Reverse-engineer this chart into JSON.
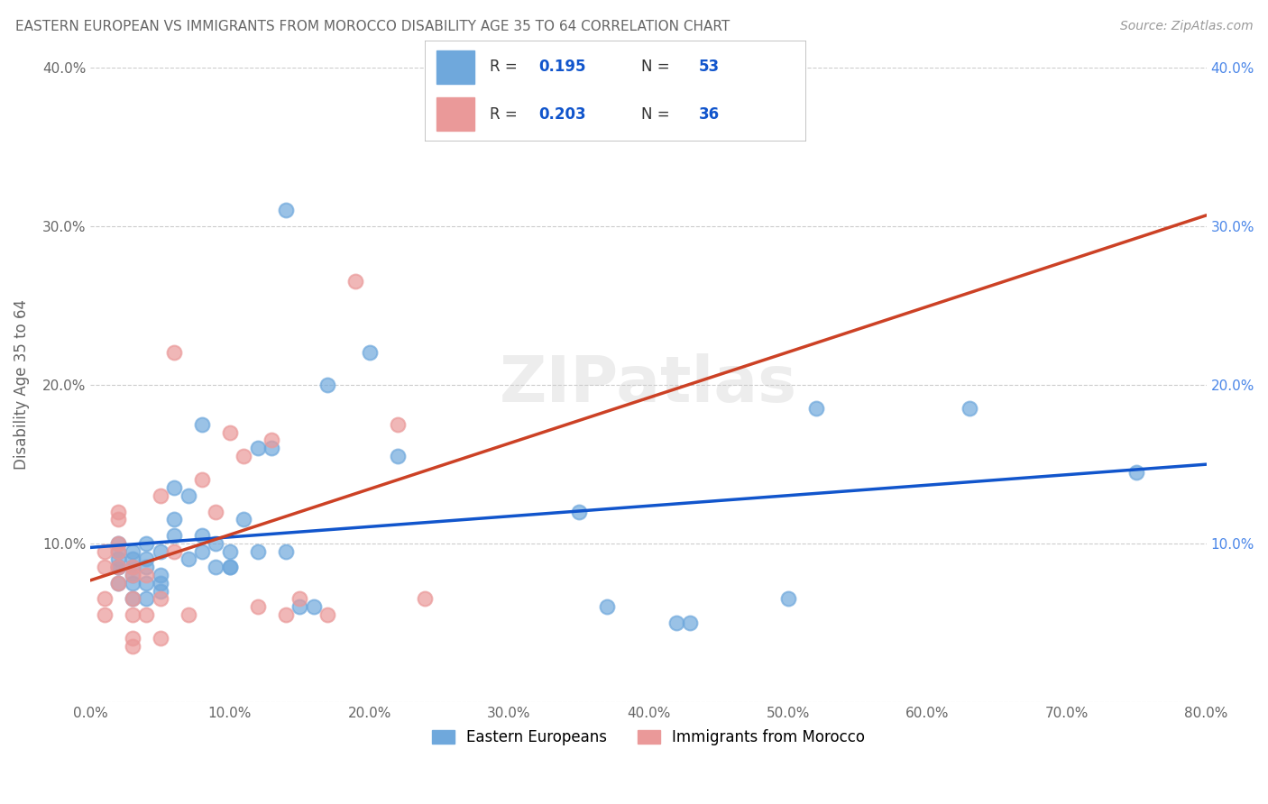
{
  "title": "EASTERN EUROPEAN VS IMMIGRANTS FROM MOROCCO DISABILITY AGE 35 TO 64 CORRELATION CHART",
  "source": "Source: ZipAtlas.com",
  "xlabel": "",
  "ylabel": "Disability Age 35 to 64",
  "xlim": [
    0,
    0.8
  ],
  "ylim": [
    0,
    0.4
  ],
  "xticks": [
    0.0,
    0.1,
    0.2,
    0.3,
    0.4,
    0.5,
    0.6,
    0.7,
    0.8
  ],
  "yticks": [
    0.0,
    0.1,
    0.2,
    0.3,
    0.4
  ],
  "xtick_labels": [
    "0.0%",
    "10.0%",
    "20.0%",
    "30.0%",
    "40.0%",
    "50.0%",
    "60.0%",
    "70.0%",
    "80.0%"
  ],
  "ytick_labels_left": [
    "",
    "10.0%",
    "20.0%",
    "30.0%",
    "40.0%"
  ],
  "ytick_labels_right": [
    "",
    "10.0%",
    "20.0%",
    "30.0%",
    "40.0%"
  ],
  "watermark": "ZIPatlas",
  "legend_v1": "0.195",
  "legend_nv1": "53",
  "legend_v2": "0.203",
  "legend_nv2": "36",
  "blue_color": "#6fa8dc",
  "pink_color": "#ea9999",
  "blue_line_color": "#1155cc",
  "pink_line_color": "#cc4125",
  "title_color": "#666666",
  "source_color": "#999999",
  "axis_label_color": "#666666",
  "tick_color_left": "#666666",
  "tick_color_right": "#4a86e8",
  "grid_color": "#cccccc",
  "legend_label1": "Eastern Europeans",
  "legend_label2": "Immigrants from Morocco",
  "blue_scatter_x": [
    0.02,
    0.02,
    0.02,
    0.02,
    0.02,
    0.02,
    0.03,
    0.03,
    0.03,
    0.03,
    0.03,
    0.03,
    0.04,
    0.04,
    0.04,
    0.04,
    0.04,
    0.05,
    0.05,
    0.05,
    0.05,
    0.06,
    0.06,
    0.06,
    0.07,
    0.07,
    0.08,
    0.08,
    0.08,
    0.09,
    0.09,
    0.1,
    0.1,
    0.1,
    0.11,
    0.12,
    0.12,
    0.13,
    0.14,
    0.15,
    0.16,
    0.17,
    0.2,
    0.22,
    0.35,
    0.37,
    0.42,
    0.43,
    0.5,
    0.52,
    0.63,
    0.75,
    0.14
  ],
  "blue_scatter_y": [
    0.085,
    0.095,
    0.1,
    0.085,
    0.09,
    0.075,
    0.095,
    0.08,
    0.085,
    0.09,
    0.075,
    0.065,
    0.1,
    0.085,
    0.09,
    0.075,
    0.065,
    0.095,
    0.08,
    0.075,
    0.07,
    0.135,
    0.115,
    0.105,
    0.13,
    0.09,
    0.105,
    0.175,
    0.095,
    0.1,
    0.085,
    0.095,
    0.085,
    0.085,
    0.115,
    0.16,
    0.095,
    0.16,
    0.095,
    0.06,
    0.06,
    0.2,
    0.22,
    0.155,
    0.12,
    0.06,
    0.05,
    0.05,
    0.065,
    0.185,
    0.185,
    0.145,
    0.31
  ],
  "pink_scatter_x": [
    0.01,
    0.01,
    0.01,
    0.01,
    0.02,
    0.02,
    0.02,
    0.02,
    0.02,
    0.02,
    0.03,
    0.03,
    0.03,
    0.03,
    0.03,
    0.03,
    0.04,
    0.04,
    0.05,
    0.05,
    0.05,
    0.06,
    0.06,
    0.07,
    0.08,
    0.09,
    0.1,
    0.11,
    0.12,
    0.13,
    0.14,
    0.15,
    0.17,
    0.19,
    0.22,
    0.24
  ],
  "pink_scatter_y": [
    0.085,
    0.095,
    0.065,
    0.055,
    0.085,
    0.075,
    0.1,
    0.095,
    0.12,
    0.115,
    0.085,
    0.08,
    0.065,
    0.055,
    0.04,
    0.035,
    0.08,
    0.055,
    0.13,
    0.065,
    0.04,
    0.22,
    0.095,
    0.055,
    0.14,
    0.12,
    0.17,
    0.155,
    0.06,
    0.165,
    0.055,
    0.065,
    0.055,
    0.265,
    0.175,
    0.065
  ]
}
